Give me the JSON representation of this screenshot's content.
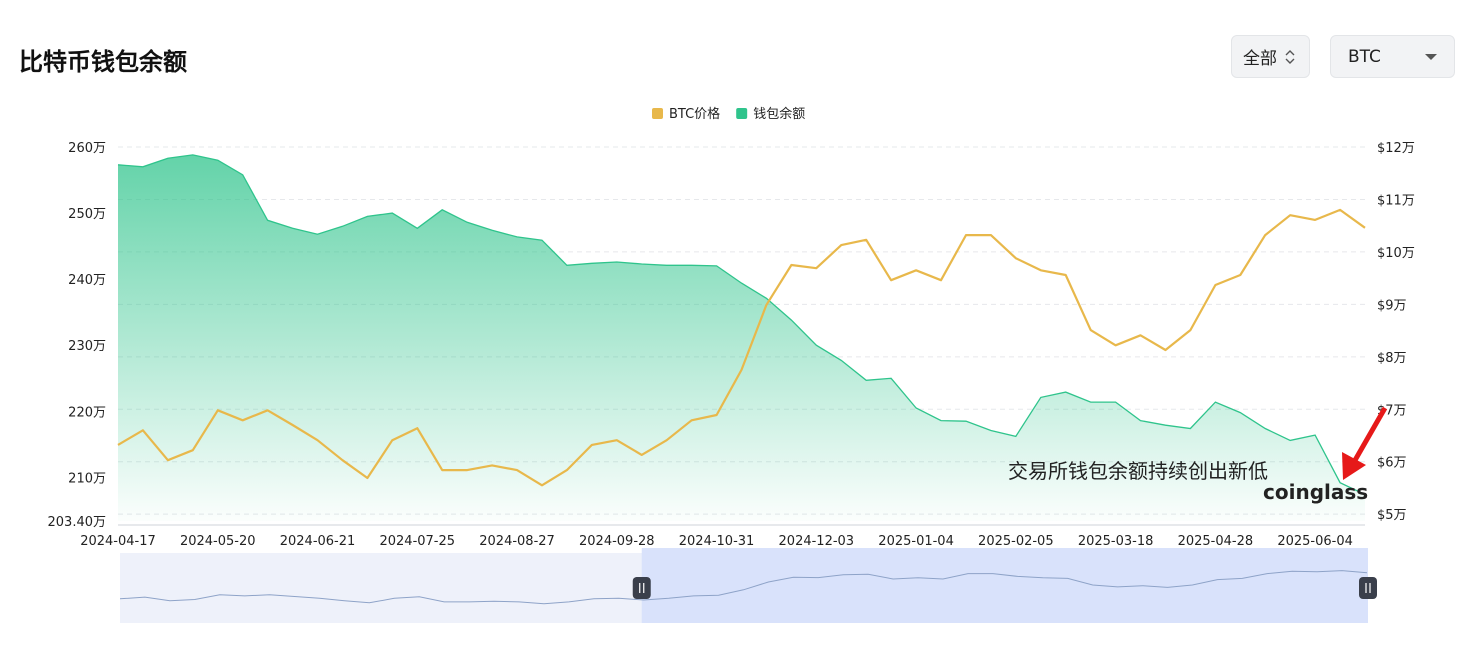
{
  "controls": {
    "range": "全部",
    "asset": "BTC"
  },
  "chart_data": {
    "type": "line",
    "title": "比特币钱包余额",
    "x": [
      "2024-04-17",
      "2024-04-25",
      "2024-05-03",
      "2024-05-11",
      "2024-05-20",
      "2024-05-28",
      "2024-06-05",
      "2024-06-13",
      "2024-06-21",
      "2024-06-29",
      "2024-07-08",
      "2024-07-16",
      "2024-07-25",
      "2024-08-02",
      "2024-08-10",
      "2024-08-18",
      "2024-08-27",
      "2024-09-04",
      "2024-09-12",
      "2024-09-20",
      "2024-09-28",
      "2024-10-06",
      "2024-10-14",
      "2024-10-22",
      "2024-10-31",
      "2024-11-08",
      "2024-11-16",
      "2024-11-24",
      "2024-12-03",
      "2024-12-11",
      "2024-12-19",
      "2024-12-27",
      "2025-01-04",
      "2025-01-12",
      "2025-01-20",
      "2025-01-28",
      "2025-02-05",
      "2025-02-15",
      "2025-02-25",
      "2025-03-07",
      "2025-03-18",
      "2025-03-28",
      "2025-04-07",
      "2025-04-17",
      "2025-04-28",
      "2025-05-06",
      "2025-05-14",
      "2025-05-22",
      "2025-06-04",
      "2025-06-09",
      "2025-06-14"
    ],
    "xticks": [
      "2024-04-17",
      "2024-05-20",
      "2024-06-21",
      "2024-07-25",
      "2024-08-27",
      "2024-09-28",
      "2024-10-31",
      "2024-12-03",
      "2025-01-04",
      "2025-02-05",
      "2025-03-18",
      "2025-04-28",
      "2025-06-04"
    ],
    "series": [
      {
        "name": "BTC价格",
        "color": "#e8b84b",
        "axis": "y2",
        "values": [
          6.32,
          6.6,
          6.03,
          6.22,
          6.98,
          6.79,
          6.98,
          6.7,
          6.41,
          6.03,
          5.69,
          6.41,
          6.64,
          5.84,
          5.84,
          5.93,
          5.84,
          5.55,
          5.84,
          6.32,
          6.41,
          6.13,
          6.41,
          6.79,
          6.89,
          7.75,
          8.99,
          9.75,
          9.69,
          10.13,
          10.23,
          9.46,
          9.65,
          9.46,
          10.32,
          10.32,
          9.88,
          9.65,
          9.56,
          8.51,
          8.22,
          8.41,
          8.13,
          8.51,
          9.37,
          9.56,
          10.32,
          10.7,
          10.61,
          10.8,
          10.46
        ]
      },
      {
        "name": "钱包余额",
        "color": "#2fc48c",
        "area": true,
        "values": [
          257.3,
          257,
          258.3,
          258.8,
          258,
          255.8,
          248.9,
          247.7,
          246.8,
          248,
          249.5,
          250,
          247.7,
          250.5,
          248.6,
          247.4,
          246.4,
          245.9,
          242.1,
          242.4,
          242.6,
          242.3,
          242.1,
          242.1,
          242,
          239.4,
          237.1,
          233.8,
          230,
          227.7,
          224.7,
          225,
          220.5,
          218.6,
          218.5,
          217.1,
          216.2,
          222.1,
          222.9,
          221.4,
          221.4,
          218.6,
          217.9,
          217.4,
          221.4,
          219.8,
          217.4,
          215.6,
          216.4,
          209.2,
          207.4
        ]
      }
    ],
    "ylim": [
      203.4,
      260
    ],
    "yticks": [
      {
        "value": 203.4,
        "label": "203.40万"
      },
      {
        "value": 210,
        "label": "210万"
      },
      {
        "value": 220,
        "label": "220万"
      },
      {
        "value": 230,
        "label": "230万"
      },
      {
        "value": 240,
        "label": "240万"
      },
      {
        "value": 250,
        "label": "250万"
      },
      {
        "value": 260,
        "label": "260万"
      }
    ],
    "y2lim": [
      4.87,
      12
    ],
    "y2ticks": [
      {
        "value": 5,
        "label": "$5万"
      },
      {
        "value": 6,
        "label": "$6万"
      },
      {
        "value": 7,
        "label": "$7万"
      },
      {
        "value": 8,
        "label": "$8万"
      },
      {
        "value": 9,
        "label": "$9万"
      },
      {
        "value": 10,
        "label": "$10万"
      },
      {
        "value": 11,
        "label": "$11万"
      },
      {
        "value": 12,
        "label": "$12万"
      }
    ],
    "grid": true,
    "legend": "top",
    "annotation": "交易所钱包余额持续创出新低",
    "watermark": "coinglass"
  }
}
